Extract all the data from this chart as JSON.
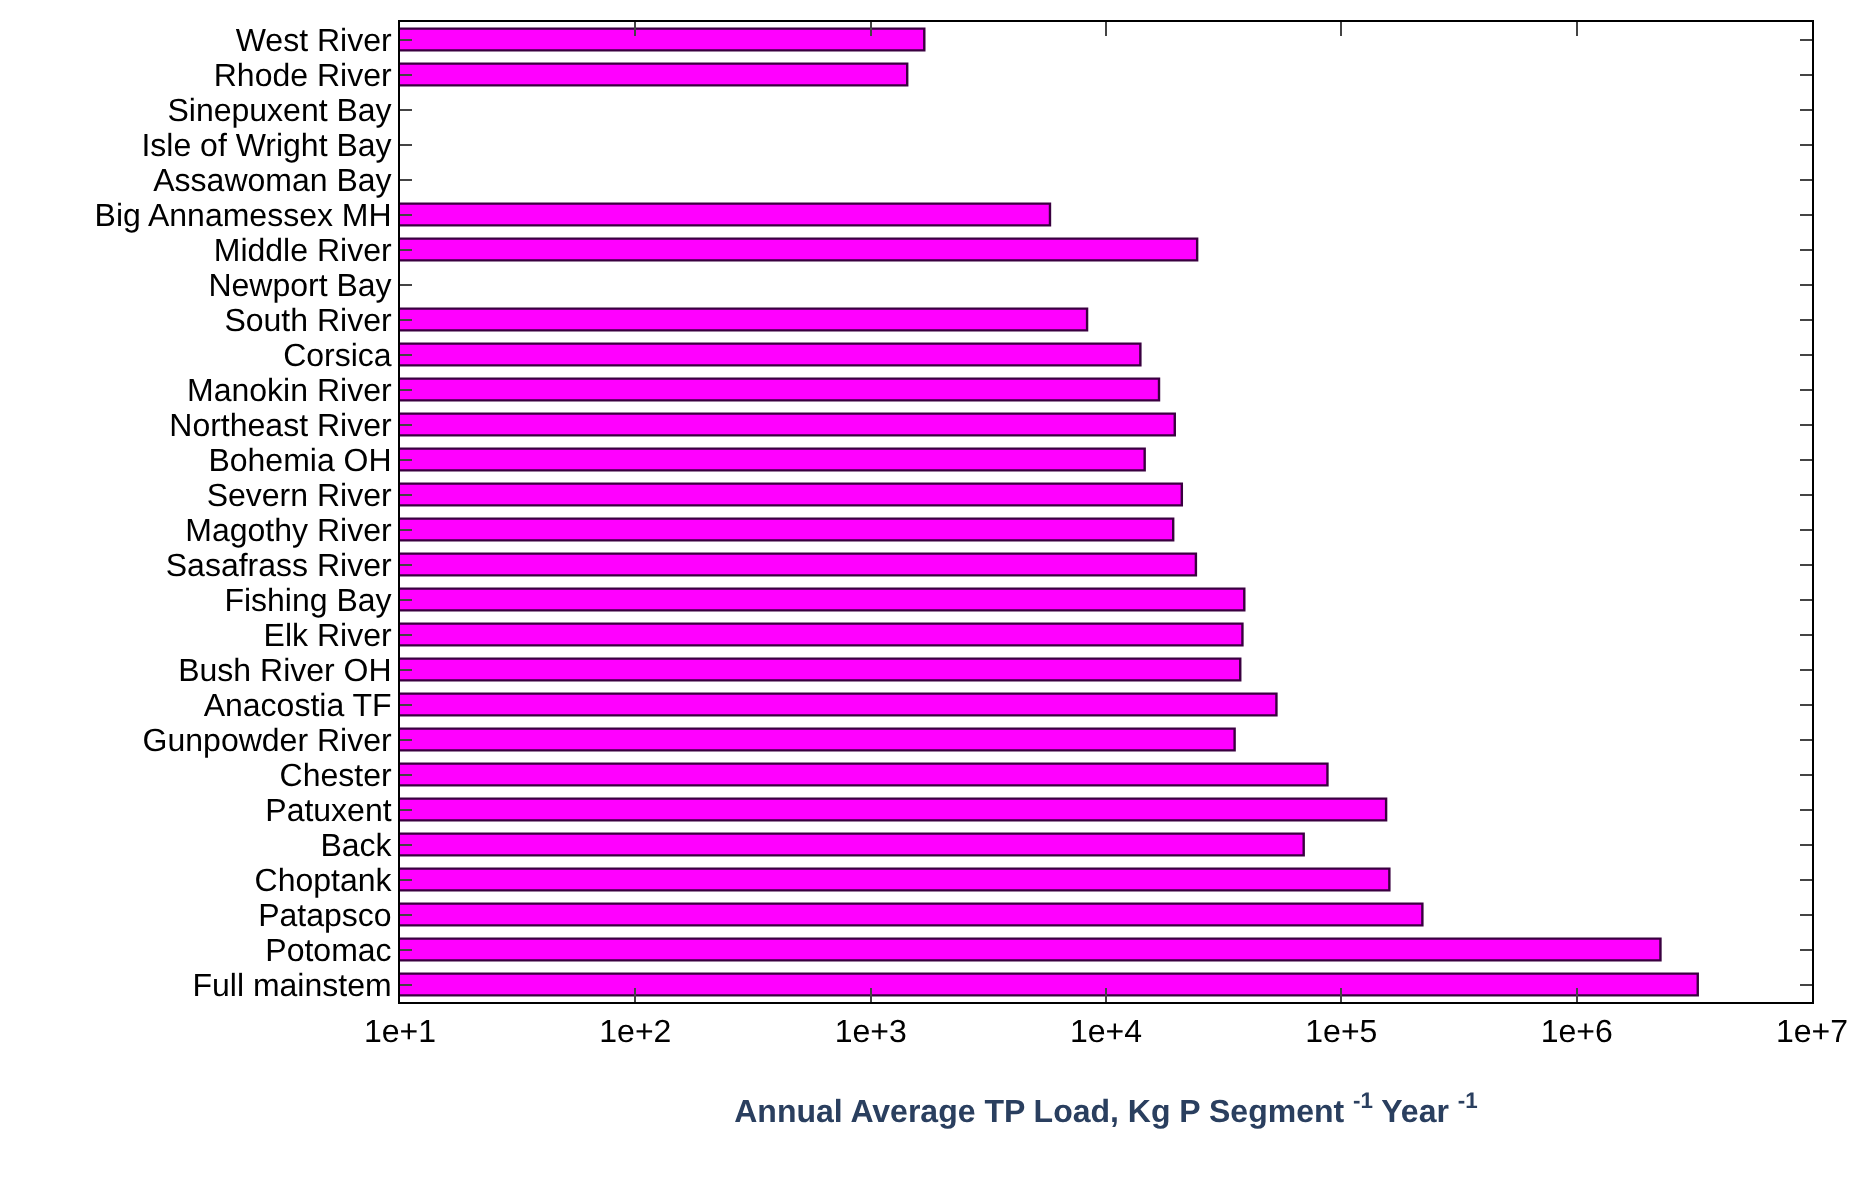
{
  "chart_data": {
    "type": "bar",
    "orientation": "horizontal",
    "xlabel": "Annual Average TP Load, Kg P Segment $^{-1}$ Year $^{-1}$",
    "categories": [
      "West River",
      "Rhode River",
      "Sinepuxent Bay",
      "Isle of Wright Bay",
      "Assawoman Bay",
      "Big Annamessex MH",
      "Middle River",
      "Newport Bay",
      "South River",
      "Corsica",
      "Manokin River",
      "Northeast River",
      "Bohemia OH",
      "Severn River",
      "Magothy River",
      "Sasafrass River",
      "Fishing Bay",
      "Elk River",
      "Bush River OH",
      "Anacostia TF",
      "Gunpowder River",
      "Chester",
      "Patuxent",
      "Back",
      "Choptank",
      "Patapsco",
      "Potomac",
      "Full mainstem"
    ],
    "values": [
      1690,
      1430,
      null,
      null,
      null,
      5780,
      24400,
      null,
      8310,
      14000,
      16800,
      19600,
      14600,
      21000,
      19300,
      24100,
      38700,
      38000,
      37200,
      53000,
      35200,
      87300,
      155000,
      69200,
      160000,
      221000,
      2270000,
      3270000
    ],
    "color": "#ff00ff",
    "log": "x",
    "xlim": [
      10,
      10000000
    ],
    "xticks": [
      {
        "value": 10,
        "label": "1e+1"
      },
      {
        "value": 100,
        "label": "1e+2"
      },
      {
        "value": 1000,
        "label": "1e+3"
      },
      {
        "value": 10000,
        "label": "1e+4"
      },
      {
        "value": 100000,
        "label": "1e+5"
      },
      {
        "value": 1000000,
        "label": "1e+6"
      },
      {
        "value": 10000000,
        "label": "1e+7"
      }
    ],
    "grid": false,
    "legend": false
  }
}
